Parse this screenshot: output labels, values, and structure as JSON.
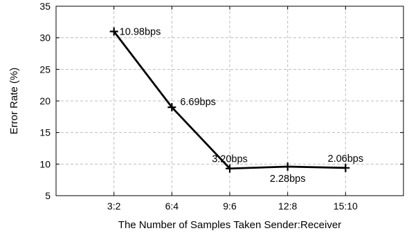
{
  "chart_data": {
    "type": "line",
    "title": "",
    "xlabel": "The Number of Samples Taken Sender:Receiver",
    "ylabel": "Error Rate (%)",
    "categories": [
      "3:2",
      "6:4",
      "9:6",
      "12:8",
      "15:10"
    ],
    "yticks": [
      5,
      10,
      15,
      20,
      25,
      30,
      35
    ],
    "ylim": [
      5,
      35
    ],
    "grid": true,
    "legend": "none",
    "series": [
      {
        "values": [
          31,
          19,
          9.3,
          9.6,
          9.4
        ],
        "labels": [
          "10.98bps",
          "6.69bps",
          "3.20bps",
          "2.28bps",
          "2.06bps"
        ]
      }
    ]
  }
}
